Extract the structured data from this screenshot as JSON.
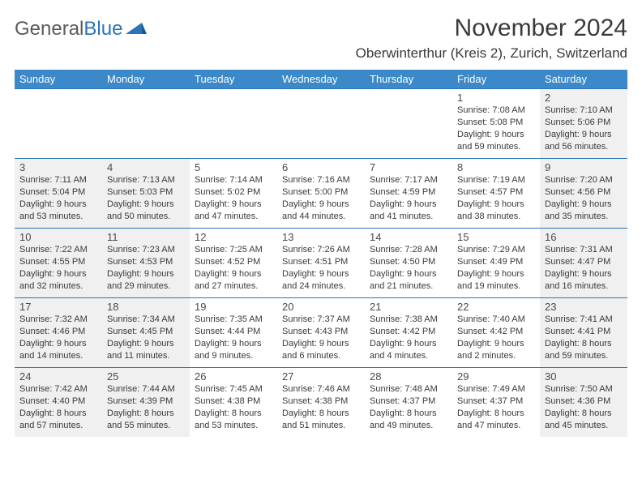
{
  "logo": {
    "text1": "General",
    "text2": "Blue"
  },
  "title": "November 2024",
  "location": "Oberwinterthur (Kreis 2), Zurich, Switzerland",
  "colors": {
    "header_bg": "#3b89c9",
    "header_text": "#ffffff",
    "border": "#2b74b8",
    "cell_grey": "#f0f0f0",
    "text": "#3a3a3a"
  },
  "day_headers": [
    "Sunday",
    "Monday",
    "Tuesday",
    "Wednesday",
    "Thursday",
    "Friday",
    "Saturday"
  ],
  "weeks": [
    [
      {
        "empty": true
      },
      {
        "empty": true
      },
      {
        "empty": true
      },
      {
        "empty": true
      },
      {
        "empty": true
      },
      {
        "day": "1",
        "sunrise": "Sunrise: 7:08 AM",
        "sunset": "Sunset: 5:08 PM",
        "daylight1": "Daylight: 9 hours",
        "daylight2": "and 59 minutes."
      },
      {
        "day": "2",
        "grey": true,
        "sunrise": "Sunrise: 7:10 AM",
        "sunset": "Sunset: 5:06 PM",
        "daylight1": "Daylight: 9 hours",
        "daylight2": "and 56 minutes."
      }
    ],
    [
      {
        "day": "3",
        "grey": true,
        "sunrise": "Sunrise: 7:11 AM",
        "sunset": "Sunset: 5:04 PM",
        "daylight1": "Daylight: 9 hours",
        "daylight2": "and 53 minutes."
      },
      {
        "day": "4",
        "grey": true,
        "sunrise": "Sunrise: 7:13 AM",
        "sunset": "Sunset: 5:03 PM",
        "daylight1": "Daylight: 9 hours",
        "daylight2": "and 50 minutes."
      },
      {
        "day": "5",
        "sunrise": "Sunrise: 7:14 AM",
        "sunset": "Sunset: 5:02 PM",
        "daylight1": "Daylight: 9 hours",
        "daylight2": "and 47 minutes."
      },
      {
        "day": "6",
        "sunrise": "Sunrise: 7:16 AM",
        "sunset": "Sunset: 5:00 PM",
        "daylight1": "Daylight: 9 hours",
        "daylight2": "and 44 minutes."
      },
      {
        "day": "7",
        "sunrise": "Sunrise: 7:17 AM",
        "sunset": "Sunset: 4:59 PM",
        "daylight1": "Daylight: 9 hours",
        "daylight2": "and 41 minutes."
      },
      {
        "day": "8",
        "sunrise": "Sunrise: 7:19 AM",
        "sunset": "Sunset: 4:57 PM",
        "daylight1": "Daylight: 9 hours",
        "daylight2": "and 38 minutes."
      },
      {
        "day": "9",
        "grey": true,
        "sunrise": "Sunrise: 7:20 AM",
        "sunset": "Sunset: 4:56 PM",
        "daylight1": "Daylight: 9 hours",
        "daylight2": "and 35 minutes."
      }
    ],
    [
      {
        "day": "10",
        "grey": true,
        "sunrise": "Sunrise: 7:22 AM",
        "sunset": "Sunset: 4:55 PM",
        "daylight1": "Daylight: 9 hours",
        "daylight2": "and 32 minutes."
      },
      {
        "day": "11",
        "grey": true,
        "sunrise": "Sunrise: 7:23 AM",
        "sunset": "Sunset: 4:53 PM",
        "daylight1": "Daylight: 9 hours",
        "daylight2": "and 29 minutes."
      },
      {
        "day": "12",
        "sunrise": "Sunrise: 7:25 AM",
        "sunset": "Sunset: 4:52 PM",
        "daylight1": "Daylight: 9 hours",
        "daylight2": "and 27 minutes."
      },
      {
        "day": "13",
        "sunrise": "Sunrise: 7:26 AM",
        "sunset": "Sunset: 4:51 PM",
        "daylight1": "Daylight: 9 hours",
        "daylight2": "and 24 minutes."
      },
      {
        "day": "14",
        "sunrise": "Sunrise: 7:28 AM",
        "sunset": "Sunset: 4:50 PM",
        "daylight1": "Daylight: 9 hours",
        "daylight2": "and 21 minutes."
      },
      {
        "day": "15",
        "sunrise": "Sunrise: 7:29 AM",
        "sunset": "Sunset: 4:49 PM",
        "daylight1": "Daylight: 9 hours",
        "daylight2": "and 19 minutes."
      },
      {
        "day": "16",
        "grey": true,
        "sunrise": "Sunrise: 7:31 AM",
        "sunset": "Sunset: 4:47 PM",
        "daylight1": "Daylight: 9 hours",
        "daylight2": "and 16 minutes."
      }
    ],
    [
      {
        "day": "17",
        "grey": true,
        "sunrise": "Sunrise: 7:32 AM",
        "sunset": "Sunset: 4:46 PM",
        "daylight1": "Daylight: 9 hours",
        "daylight2": "and 14 minutes."
      },
      {
        "day": "18",
        "grey": true,
        "sunrise": "Sunrise: 7:34 AM",
        "sunset": "Sunset: 4:45 PM",
        "daylight1": "Daylight: 9 hours",
        "daylight2": "and 11 minutes."
      },
      {
        "day": "19",
        "sunrise": "Sunrise: 7:35 AM",
        "sunset": "Sunset: 4:44 PM",
        "daylight1": "Daylight: 9 hours",
        "daylight2": "and 9 minutes."
      },
      {
        "day": "20",
        "sunrise": "Sunrise: 7:37 AM",
        "sunset": "Sunset: 4:43 PM",
        "daylight1": "Daylight: 9 hours",
        "daylight2": "and 6 minutes."
      },
      {
        "day": "21",
        "sunrise": "Sunrise: 7:38 AM",
        "sunset": "Sunset: 4:42 PM",
        "daylight1": "Daylight: 9 hours",
        "daylight2": "and 4 minutes."
      },
      {
        "day": "22",
        "sunrise": "Sunrise: 7:40 AM",
        "sunset": "Sunset: 4:42 PM",
        "daylight1": "Daylight: 9 hours",
        "daylight2": "and 2 minutes."
      },
      {
        "day": "23",
        "grey": true,
        "sunrise": "Sunrise: 7:41 AM",
        "sunset": "Sunset: 4:41 PM",
        "daylight1": "Daylight: 8 hours",
        "daylight2": "and 59 minutes."
      }
    ],
    [
      {
        "day": "24",
        "grey": true,
        "sunrise": "Sunrise: 7:42 AM",
        "sunset": "Sunset: 4:40 PM",
        "daylight1": "Daylight: 8 hours",
        "daylight2": "and 57 minutes."
      },
      {
        "day": "25",
        "grey": true,
        "sunrise": "Sunrise: 7:44 AM",
        "sunset": "Sunset: 4:39 PM",
        "daylight1": "Daylight: 8 hours",
        "daylight2": "and 55 minutes."
      },
      {
        "day": "26",
        "sunrise": "Sunrise: 7:45 AM",
        "sunset": "Sunset: 4:38 PM",
        "daylight1": "Daylight: 8 hours",
        "daylight2": "and 53 minutes."
      },
      {
        "day": "27",
        "sunrise": "Sunrise: 7:46 AM",
        "sunset": "Sunset: 4:38 PM",
        "daylight1": "Daylight: 8 hours",
        "daylight2": "and 51 minutes."
      },
      {
        "day": "28",
        "sunrise": "Sunrise: 7:48 AM",
        "sunset": "Sunset: 4:37 PM",
        "daylight1": "Daylight: 8 hours",
        "daylight2": "and 49 minutes."
      },
      {
        "day": "29",
        "sunrise": "Sunrise: 7:49 AM",
        "sunset": "Sunset: 4:37 PM",
        "daylight1": "Daylight: 8 hours",
        "daylight2": "and 47 minutes."
      },
      {
        "day": "30",
        "grey": true,
        "sunrise": "Sunrise: 7:50 AM",
        "sunset": "Sunset: 4:36 PM",
        "daylight1": "Daylight: 8 hours",
        "daylight2": "and 45 minutes."
      }
    ]
  ]
}
